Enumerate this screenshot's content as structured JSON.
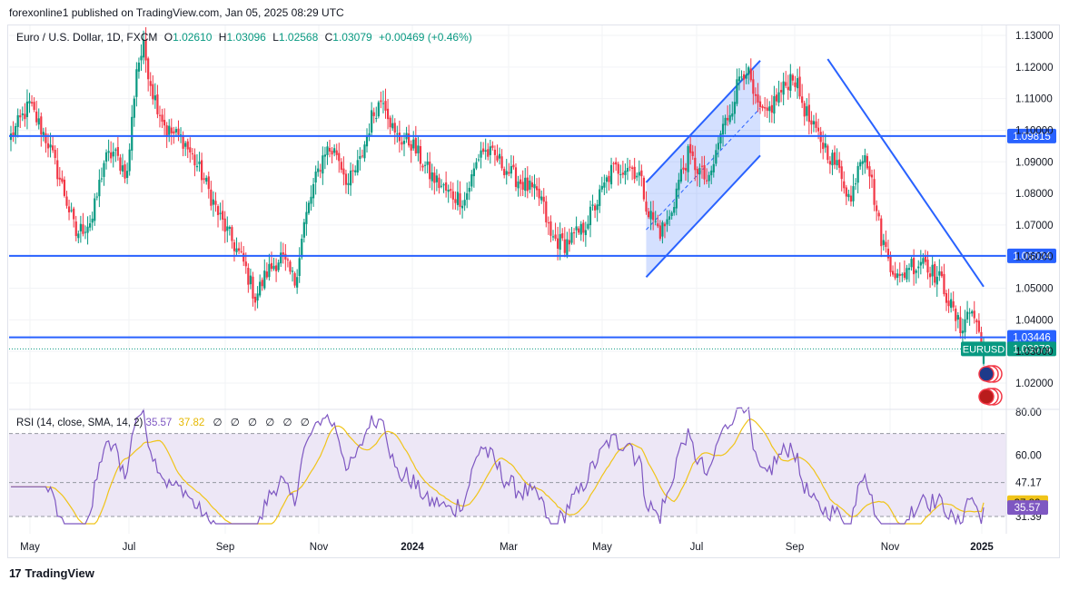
{
  "header": {
    "published": "forexonline1 published on TradingView.com, Jan 05, 2025 08:29 UTC"
  },
  "legend": {
    "symbol": "Euro / U.S. Dollar, 1D, FXCM",
    "o_label": "O",
    "o": "1.02610",
    "h_label": "H",
    "h": "1.03096",
    "l_label": "L",
    "l": "1.02568",
    "c_label": "C",
    "c": "1.03079",
    "change": "+0.00469 (+0.46%)"
  },
  "rsi_legend": {
    "label": "RSI (14, close, SMA, 14, 2)",
    "rsi": "35.57",
    "sma": "37.82",
    "placeholders": [
      "∅",
      "∅",
      "∅",
      "∅",
      "∅",
      "∅"
    ]
  },
  "brand": {
    "logo": "17",
    "name": "TradingView"
  },
  "colors": {
    "up": "#089981",
    "down": "#f23645",
    "line": "#2962ff",
    "rsi": "#7e57c2",
    "sma": "#f0c419",
    "rsi_band": "#ede7f6"
  },
  "chart_data": {
    "type": "candlestick",
    "price_axis": {
      "min": 1.015,
      "max": 1.133,
      "ticks": [
        "1.13000",
        "1.12000",
        "1.11000",
        "1.10000",
        "1.09000",
        "1.08000",
        "1.07000",
        "1.06000",
        "1.05000",
        "1.04000",
        "1.03000",
        "1.02000"
      ]
    },
    "time_axis": {
      "labels": [
        "May",
        "Jul",
        "Sep",
        "Nov",
        "2024",
        "Mar",
        "May",
        "Jul",
        "Sep",
        "Nov",
        "2025"
      ],
      "bold": [
        "2024",
        "2025"
      ]
    },
    "anchors": [
      [
        0,
        1.098
      ],
      [
        8,
        1.108
      ],
      [
        16,
        1.096
      ],
      [
        23,
        1.08
      ],
      [
        28,
        1.067
      ],
      [
        35,
        1.072
      ],
      [
        40,
        1.09
      ],
      [
        44,
        1.093
      ],
      [
        50,
        1.086
      ],
      [
        54,
        1.12
      ],
      [
        57,
        1.126
      ],
      [
        61,
        1.112
      ],
      [
        67,
        1.1
      ],
      [
        74,
        1.097
      ],
      [
        82,
        1.086
      ],
      [
        90,
        1.072
      ],
      [
        100,
        1.058
      ],
      [
        105,
        1.047
      ],
      [
        110,
        1.055
      ],
      [
        116,
        1.06
      ],
      [
        122,
        1.052
      ],
      [
        126,
        1.07
      ],
      [
        130,
        1.082
      ],
      [
        135,
        1.094
      ],
      [
        140,
        1.093
      ],
      [
        145,
        1.083
      ],
      [
        150,
        1.09
      ],
      [
        155,
        1.104
      ],
      [
        160,
        1.111
      ],
      [
        165,
        1.098
      ],
      [
        172,
        1.096
      ],
      [
        180,
        1.086
      ],
      [
        188,
        1.08
      ],
      [
        195,
        1.078
      ],
      [
        202,
        1.094
      ],
      [
        209,
        1.091
      ],
      [
        215,
        1.086
      ],
      [
        222,
        1.082
      ],
      [
        228,
        1.078
      ],
      [
        232,
        1.066
      ],
      [
        238,
        1.064
      ],
      [
        245,
        1.068
      ],
      [
        251,
        1.076
      ],
      [
        258,
        1.087
      ],
      [
        265,
        1.089
      ],
      [
        270,
        1.086
      ],
      [
        274,
        1.074
      ],
      [
        279,
        1.068
      ],
      [
        283,
        1.072
      ],
      [
        287,
        1.084
      ],
      [
        291,
        1.092
      ],
      [
        296,
        1.087
      ],
      [
        300,
        1.083
      ],
      [
        305,
        1.099
      ],
      [
        310,
        1.108
      ],
      [
        313,
        1.117
      ],
      [
        316,
        1.12
      ],
      [
        320,
        1.108
      ],
      [
        324,
        1.104
      ],
      [
        328,
        1.109
      ],
      [
        332,
        1.113
      ],
      [
        336,
        1.118
      ],
      [
        340,
        1.109
      ],
      [
        344,
        1.101
      ],
      [
        348,
        1.097
      ],
      [
        352,
        1.092
      ],
      [
        357,
        1.086
      ],
      [
        361,
        1.077
      ],
      [
        364,
        1.09
      ],
      [
        367,
        1.094
      ],
      [
        370,
        1.083
      ],
      [
        374,
        1.066
      ],
      [
        378,
        1.058
      ],
      [
        382,
        1.052
      ],
      [
        386,
        1.058
      ],
      [
        389,
        1.057
      ],
      [
        392,
        1.06
      ],
      [
        396,
        1.055
      ],
      [
        400,
        1.052
      ],
      [
        404,
        1.044
      ],
      [
        408,
        1.037
      ],
      [
        410,
        1.041
      ],
      [
        413,
        1.043
      ],
      [
        416,
        1.036
      ],
      [
        418,
        1.031
      ]
    ],
    "horizontal_levels": [
      {
        "value": 1.09815,
        "label": "1.09815"
      },
      {
        "value": 1.06024,
        "label": "1.06024"
      },
      {
        "value": 1.03446,
        "label": "1.03446"
      }
    ],
    "last_price": {
      "value": 1.03079,
      "label": "1.03079",
      "symbol": "EURUSD"
    },
    "trend_lines": [
      {
        "from": [
          351,
          1.1225
        ],
        "to": [
          418,
          1.0505
        ]
      }
    ],
    "channel": {
      "upper": [
        [
          273,
          1.0835
        ],
        [
          322,
          1.122
        ]
      ],
      "lower": [
        [
          273,
          1.0535
        ],
        [
          322,
          1.092
        ]
      ]
    },
    "rsi": {
      "axis": {
        "min": 28,
        "max": 82
      },
      "levels": [
        {
          "value": 70,
          "label": ""
        },
        {
          "value": 47.17,
          "label": "47.17"
        },
        {
          "value": 31.39,
          "label": "31.39"
        }
      ],
      "tick_labels": [
        {
          "value": 80,
          "label": "80.00"
        },
        {
          "value": 60,
          "label": "60.00"
        }
      ],
      "rsi_badge": {
        "value": 35.57,
        "label": "35.57"
      },
      "sma_badge": {
        "value": 37.82,
        "label": "37.82"
      }
    }
  }
}
